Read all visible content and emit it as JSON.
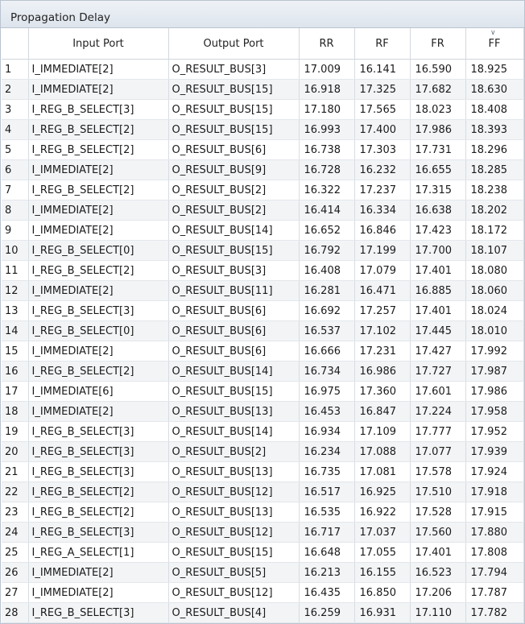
{
  "panel": {
    "title": "Propagation Delay"
  },
  "columns": [
    "",
    "Input Port",
    "Output Port",
    "RR",
    "RF",
    "FR",
    "FF"
  ],
  "sort_icon": "chevron-down-icon",
  "rows": [
    [
      "1",
      "I_IMMEDIATE[2]",
      "O_RESULT_BUS[3]",
      "17.009",
      "16.141",
      "16.590",
      "18.925"
    ],
    [
      "2",
      "I_IMMEDIATE[2]",
      "O_RESULT_BUS[15]",
      "16.918",
      "17.325",
      "17.682",
      "18.630"
    ],
    [
      "3",
      "I_REG_B_SELECT[3]",
      "O_RESULT_BUS[15]",
      "17.180",
      "17.565",
      "18.023",
      "18.408"
    ],
    [
      "4",
      "I_REG_B_SELECT[2]",
      "O_RESULT_BUS[15]",
      "16.993",
      "17.400",
      "17.986",
      "18.393"
    ],
    [
      "5",
      "I_REG_B_SELECT[2]",
      "O_RESULT_BUS[6]",
      "16.738",
      "17.303",
      "17.731",
      "18.296"
    ],
    [
      "6",
      "I_IMMEDIATE[2]",
      "O_RESULT_BUS[9]",
      "16.728",
      "16.232",
      "16.655",
      "18.285"
    ],
    [
      "7",
      "I_REG_B_SELECT[2]",
      "O_RESULT_BUS[2]",
      "16.322",
      "17.237",
      "17.315",
      "18.238"
    ],
    [
      "8",
      "I_IMMEDIATE[2]",
      "O_RESULT_BUS[2]",
      "16.414",
      "16.334",
      "16.638",
      "18.202"
    ],
    [
      "9",
      "I_IMMEDIATE[2]",
      "O_RESULT_BUS[14]",
      "16.652",
      "16.846",
      "17.423",
      "18.172"
    ],
    [
      "10",
      "I_REG_B_SELECT[0]",
      "O_RESULT_BUS[15]",
      "16.792",
      "17.199",
      "17.700",
      "18.107"
    ],
    [
      "11",
      "I_REG_B_SELECT[2]",
      "O_RESULT_BUS[3]",
      "16.408",
      "17.079",
      "17.401",
      "18.080"
    ],
    [
      "12",
      "I_IMMEDIATE[2]",
      "O_RESULT_BUS[11]",
      "16.281",
      "16.471",
      "16.885",
      "18.060"
    ],
    [
      "13",
      "I_REG_B_SELECT[3]",
      "O_RESULT_BUS[6]",
      "16.692",
      "17.257",
      "17.401",
      "18.024"
    ],
    [
      "14",
      "I_REG_B_SELECT[0]",
      "O_RESULT_BUS[6]",
      "16.537",
      "17.102",
      "17.445",
      "18.010"
    ],
    [
      "15",
      "I_IMMEDIATE[2]",
      "O_RESULT_BUS[6]",
      "16.666",
      "17.231",
      "17.427",
      "17.992"
    ],
    [
      "16",
      "I_REG_B_SELECT[2]",
      "O_RESULT_BUS[14]",
      "16.734",
      "16.986",
      "17.727",
      "17.987"
    ],
    [
      "17",
      "I_IMMEDIATE[6]",
      "O_RESULT_BUS[15]",
      "16.975",
      "17.360",
      "17.601",
      "17.986"
    ],
    [
      "18",
      "I_IMMEDIATE[2]",
      "O_RESULT_BUS[13]",
      "16.453",
      "16.847",
      "17.224",
      "17.958"
    ],
    [
      "19",
      "I_REG_B_SELECT[3]",
      "O_RESULT_BUS[14]",
      "16.934",
      "17.109",
      "17.777",
      "17.952"
    ],
    [
      "20",
      "I_REG_B_SELECT[3]",
      "O_RESULT_BUS[2]",
      "16.234",
      "17.088",
      "17.077",
      "17.939"
    ],
    [
      "21",
      "I_REG_B_SELECT[3]",
      "O_RESULT_BUS[13]",
      "16.735",
      "17.081",
      "17.578",
      "17.924"
    ],
    [
      "22",
      "I_REG_B_SELECT[2]",
      "O_RESULT_BUS[12]",
      "16.517",
      "16.925",
      "17.510",
      "17.918"
    ],
    [
      "23",
      "I_REG_B_SELECT[2]",
      "O_RESULT_BUS[13]",
      "16.535",
      "16.922",
      "17.528",
      "17.915"
    ],
    [
      "24",
      "I_REG_B_SELECT[3]",
      "O_RESULT_BUS[12]",
      "16.717",
      "17.037",
      "17.560",
      "17.880"
    ],
    [
      "25",
      "I_REG_A_SELECT[1]",
      "O_RESULT_BUS[15]",
      "16.648",
      "17.055",
      "17.401",
      "17.808"
    ],
    [
      "26",
      "I_IMMEDIATE[2]",
      "O_RESULT_BUS[5]",
      "16.213",
      "16.155",
      "16.523",
      "17.794"
    ],
    [
      "27",
      "I_IMMEDIATE[2]",
      "O_RESULT_BUS[12]",
      "16.435",
      "16.850",
      "17.206",
      "17.787"
    ],
    [
      "28",
      "I_REG_B_SELECT[3]",
      "O_RESULT_BUS[4]",
      "16.259",
      "16.931",
      "17.110",
      "17.782"
    ]
  ]
}
